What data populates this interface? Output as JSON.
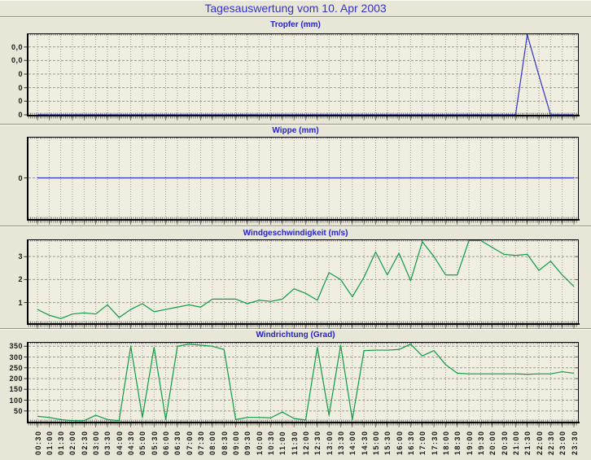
{
  "page": {
    "title": "Tagesauswertung vom 10. Apr 2003",
    "title_color": "#3333cc",
    "background": "#e8e6d6",
    "plot_background": "#efeee0",
    "grid_color": "#9b9b8d"
  },
  "x_labels": [
    "00:30",
    "01:00",
    "01:30",
    "02:00",
    "02:30",
    "03:00",
    "03:30",
    "04:00",
    "04:30",
    "05:00",
    "05:30",
    "06:00",
    "06:30",
    "07:00",
    "07:30",
    "08:00",
    "08:30",
    "09:00",
    "09:30",
    "10:00",
    "10:30",
    "11:00",
    "11:30",
    "12:00",
    "12:30",
    "13:00",
    "13:30",
    "14:00",
    "14:30",
    "15:00",
    "15:30",
    "16:00",
    "16:30",
    "17:00",
    "17:30",
    "18:00",
    "18:30",
    "19:00",
    "19:30",
    "20:00",
    "20:30",
    "21:00",
    "21:30",
    "22:00",
    "22:30",
    "23:00",
    "23:30"
  ],
  "chart_data": [
    {
      "id": "tropfer",
      "type": "line",
      "title": "Tropfer (mm)",
      "color": "#3333cc",
      "ylim": [
        0,
        0.06
      ],
      "yticks": [
        {
          "v": 0.05,
          "label": "0,0"
        },
        {
          "v": 0.04,
          "label": "0,0"
        },
        {
          "v": 0.03,
          "label": "0"
        },
        {
          "v": 0.02,
          "label": "0"
        },
        {
          "v": 0.01,
          "label": "0"
        },
        {
          "v": 0,
          "label": "0"
        }
      ],
      "values": [
        0,
        0,
        0,
        0,
        0,
        0,
        0,
        0,
        0,
        0,
        0,
        0,
        0,
        0,
        0,
        0,
        0,
        0,
        0,
        0,
        0,
        0,
        0,
        0,
        0,
        0,
        0,
        0,
        0,
        0,
        0,
        0,
        0,
        0,
        0,
        0,
        0,
        0,
        0,
        0,
        0,
        0,
        0.059,
        0.029,
        0,
        0,
        0
      ]
    },
    {
      "id": "wippe",
      "type": "line",
      "title": "Wippe (mm)",
      "color": "#3333cc",
      "ylim": [
        -1,
        1
      ],
      "yticks": [
        {
          "v": 0,
          "label": "0"
        }
      ],
      "values": [
        0,
        0,
        0,
        0,
        0,
        0,
        0,
        0,
        0,
        0,
        0,
        0,
        0,
        0,
        0,
        0,
        0,
        0,
        0,
        0,
        0,
        0,
        0,
        0,
        0,
        0,
        0,
        0,
        0,
        0,
        0,
        0,
        0,
        0,
        0,
        0,
        0,
        0,
        0,
        0,
        0,
        0,
        0,
        0,
        0,
        0,
        0
      ]
    },
    {
      "id": "windgeschwindigkeit",
      "type": "line",
      "title": "Windgeschwindigkeit (m/s)",
      "color": "#0e9c46",
      "ylim": [
        0.1,
        3.75
      ],
      "yticks": [
        {
          "v": 3,
          "label": "3"
        },
        {
          "v": 2,
          "label": "2"
        },
        {
          "v": 1,
          "label": "1"
        }
      ],
      "values": [
        0.7,
        0.45,
        0.3,
        0.5,
        0.55,
        0.5,
        0.9,
        0.35,
        0.7,
        0.95,
        0.6,
        0.7,
        0.8,
        0.9,
        0.8,
        1.15,
        1.15,
        1.15,
        0.95,
        1.1,
        1.05,
        1.15,
        1.6,
        1.4,
        1.1,
        2.3,
        2.0,
        1.25,
        2.1,
        3.2,
        2.2,
        3.15,
        1.95,
        3.65,
        3.0,
        2.2,
        2.2,
        3.7,
        3.7,
        3.4,
        3.1,
        3.05,
        3.1,
        2.4,
        2.8,
        2.2,
        1.7
      ]
    },
    {
      "id": "windrichtung",
      "type": "line",
      "title": "Windrichtung (Grad)",
      "color": "#0e9c46",
      "ylim": [
        0,
        370
      ],
      "yticks": [
        {
          "v": 350,
          "label": "350"
        },
        {
          "v": 300,
          "label": "300"
        },
        {
          "v": 250,
          "label": "250"
        },
        {
          "v": 200,
          "label": "200"
        },
        {
          "v": 150,
          "label": "150"
        },
        {
          "v": 100,
          "label": "100"
        },
        {
          "v": 50,
          "label": "50"
        }
      ],
      "values": [
        25,
        20,
        10,
        5,
        5,
        30,
        10,
        5,
        350,
        20,
        345,
        10,
        350,
        360,
        355,
        350,
        335,
        10,
        20,
        20,
        18,
        45,
        15,
        8,
        345,
        30,
        355,
        10,
        330,
        332,
        332,
        335,
        360,
        305,
        330,
        265,
        225,
        222,
        222,
        222,
        222,
        222,
        220,
        222,
        222,
        232,
        225
      ]
    }
  ]
}
